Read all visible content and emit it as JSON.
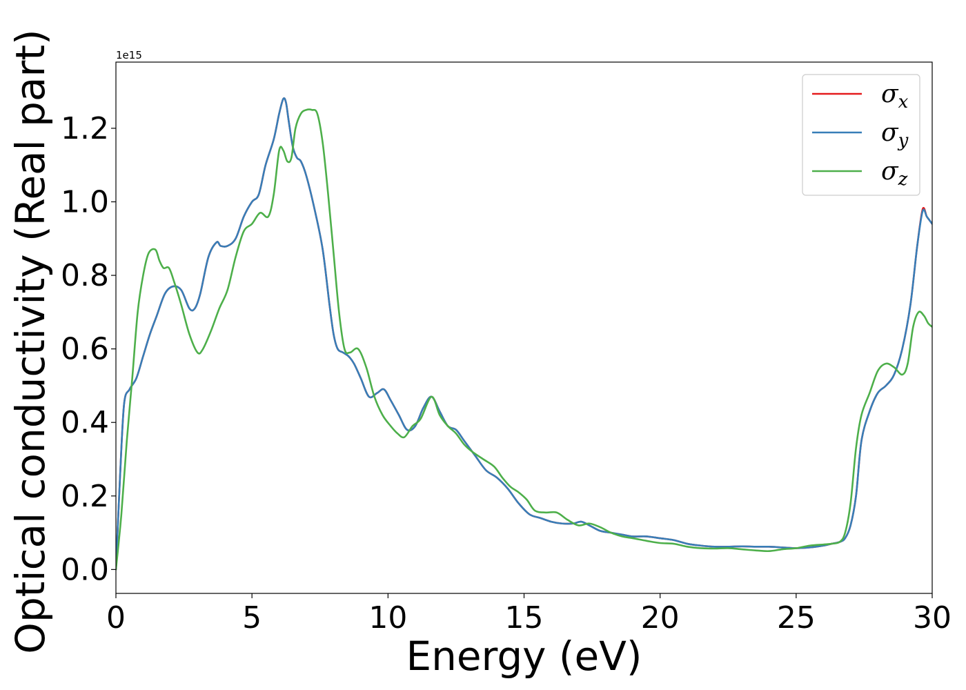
{
  "chart_data": {
    "type": "line",
    "title": "",
    "xlabel": "Energy (eV)",
    "ylabel": "Optical conductivity (Real part)",
    "y_offset_label": "1e15",
    "xlim": [
      0,
      30
    ],
    "ylim": [
      -0.065,
      1.38
    ],
    "x_ticks": [
      0,
      5,
      10,
      15,
      20,
      25,
      30
    ],
    "x_tick_labels": [
      "0",
      "5",
      "10",
      "15",
      "20",
      "25",
      "30"
    ],
    "y_ticks": [
      0.0,
      0.2,
      0.4,
      0.6,
      0.8,
      1.0,
      1.2
    ],
    "y_tick_labels": [
      "0.0",
      "0.2",
      "0.4",
      "0.6",
      "0.8",
      "1.0",
      "1.2"
    ],
    "grid": false,
    "legend_position": "top-right",
    "series": [
      {
        "name": "σx",
        "legend_symbol": "σ",
        "legend_subscript": "x",
        "color": "#e41a1c",
        "x": [
          0,
          0.15,
          0.3,
          0.5,
          0.75,
          1.0,
          1.25,
          1.5,
          1.8,
          2.1,
          2.4,
          2.7,
          2.9,
          3.1,
          3.4,
          3.7,
          3.85,
          4.1,
          4.4,
          4.7,
          5.0,
          5.25,
          5.5,
          5.8,
          6.0,
          6.15,
          6.25,
          6.35,
          6.5,
          6.65,
          6.8,
          7.0,
          7.3,
          7.6,
          7.85,
          8.0,
          8.15,
          8.35,
          8.55,
          8.75,
          9.0,
          9.3,
          9.6,
          9.85,
          10.1,
          10.4,
          10.7,
          11.0,
          11.3,
          11.6,
          11.9,
          12.2,
          12.5,
          12.8,
          13.2,
          13.6,
          14.0,
          14.4,
          14.8,
          15.2,
          15.6,
          16.0,
          16.4,
          16.8,
          17.1,
          17.4,
          17.8,
          18.2,
          18.6,
          19.0,
          19.5,
          20.0,
          20.5,
          21.0,
          21.5,
          22.0,
          22.5,
          23.0,
          23.5,
          24.0,
          24.5,
          25.0,
          25.5,
          26.0,
          26.3,
          26.6,
          26.8,
          27.0,
          27.2,
          27.4,
          27.7,
          28.0,
          28.3,
          28.6,
          28.9,
          29.2,
          29.45,
          29.65,
          29.8,
          29.9,
          30.0
        ],
        "values": [
          0.0,
          0.25,
          0.45,
          0.49,
          0.52,
          0.58,
          0.64,
          0.69,
          0.75,
          0.77,
          0.76,
          0.71,
          0.71,
          0.75,
          0.85,
          0.89,
          0.88,
          0.88,
          0.9,
          0.96,
          1.0,
          1.02,
          1.1,
          1.17,
          1.24,
          1.28,
          1.27,
          1.22,
          1.15,
          1.12,
          1.11,
          1.07,
          0.98,
          0.87,
          0.72,
          0.64,
          0.6,
          0.59,
          0.58,
          0.56,
          0.52,
          0.47,
          0.48,
          0.49,
          0.46,
          0.42,
          0.38,
          0.39,
          0.44,
          0.47,
          0.43,
          0.39,
          0.38,
          0.35,
          0.31,
          0.27,
          0.25,
          0.22,
          0.18,
          0.15,
          0.14,
          0.13,
          0.125,
          0.125,
          0.13,
          0.12,
          0.105,
          0.1,
          0.095,
          0.09,
          0.09,
          0.085,
          0.08,
          0.07,
          0.065,
          0.062,
          0.062,
          0.063,
          0.062,
          0.062,
          0.06,
          0.058,
          0.06,
          0.065,
          0.07,
          0.075,
          0.085,
          0.12,
          0.2,
          0.35,
          0.43,
          0.48,
          0.5,
          0.53,
          0.6,
          0.72,
          0.88,
          0.98,
          0.96,
          0.95,
          0.94
        ]
      },
      {
        "name": "σy",
        "legend_symbol": "σ",
        "legend_subscript": "y",
        "color": "#377eb8",
        "x": [
          0,
          0.15,
          0.3,
          0.5,
          0.75,
          1.0,
          1.25,
          1.5,
          1.8,
          2.1,
          2.4,
          2.7,
          2.9,
          3.1,
          3.4,
          3.7,
          3.85,
          4.1,
          4.4,
          4.7,
          5.0,
          5.25,
          5.5,
          5.8,
          6.0,
          6.15,
          6.25,
          6.35,
          6.5,
          6.65,
          6.8,
          7.0,
          7.3,
          7.6,
          7.85,
          8.0,
          8.15,
          8.35,
          8.55,
          8.75,
          9.0,
          9.3,
          9.6,
          9.85,
          10.1,
          10.4,
          10.7,
          11.0,
          11.3,
          11.6,
          11.9,
          12.2,
          12.5,
          12.8,
          13.2,
          13.6,
          14.0,
          14.4,
          14.8,
          15.2,
          15.6,
          16.0,
          16.4,
          16.8,
          17.1,
          17.4,
          17.8,
          18.2,
          18.6,
          19.0,
          19.5,
          20.0,
          20.5,
          21.0,
          21.5,
          22.0,
          22.5,
          23.0,
          23.5,
          24.0,
          24.5,
          25.0,
          25.5,
          26.0,
          26.3,
          26.6,
          26.8,
          27.0,
          27.2,
          27.4,
          27.7,
          28.0,
          28.3,
          28.6,
          28.9,
          29.2,
          29.45,
          29.65,
          29.8,
          29.9,
          30.0
        ],
        "values": [
          0.0,
          0.25,
          0.45,
          0.49,
          0.52,
          0.58,
          0.64,
          0.69,
          0.75,
          0.77,
          0.76,
          0.71,
          0.71,
          0.75,
          0.85,
          0.89,
          0.88,
          0.88,
          0.9,
          0.96,
          1.0,
          1.02,
          1.1,
          1.17,
          1.24,
          1.28,
          1.27,
          1.22,
          1.15,
          1.12,
          1.11,
          1.07,
          0.98,
          0.87,
          0.72,
          0.64,
          0.6,
          0.59,
          0.58,
          0.56,
          0.52,
          0.47,
          0.48,
          0.49,
          0.46,
          0.42,
          0.38,
          0.39,
          0.44,
          0.47,
          0.43,
          0.39,
          0.38,
          0.35,
          0.31,
          0.27,
          0.25,
          0.22,
          0.18,
          0.15,
          0.14,
          0.13,
          0.125,
          0.125,
          0.13,
          0.12,
          0.105,
          0.1,
          0.095,
          0.09,
          0.09,
          0.085,
          0.08,
          0.07,
          0.065,
          0.062,
          0.062,
          0.063,
          0.062,
          0.062,
          0.06,
          0.058,
          0.06,
          0.065,
          0.07,
          0.075,
          0.085,
          0.12,
          0.2,
          0.35,
          0.43,
          0.48,
          0.5,
          0.53,
          0.6,
          0.72,
          0.88,
          0.975,
          0.96,
          0.95,
          0.94
        ]
      },
      {
        "name": "σz",
        "legend_symbol": "σ",
        "legend_subscript": "z",
        "color": "#4daf4a",
        "x": [
          0,
          0.2,
          0.4,
          0.6,
          0.8,
          1.0,
          1.2,
          1.45,
          1.6,
          1.75,
          1.95,
          2.15,
          2.4,
          2.7,
          3.0,
          3.2,
          3.5,
          3.8,
          4.1,
          4.4,
          4.7,
          5.0,
          5.3,
          5.6,
          5.8,
          6.0,
          6.15,
          6.3,
          6.45,
          6.6,
          6.8,
          7.0,
          7.2,
          7.4,
          7.6,
          7.8,
          8.0,
          8.2,
          8.4,
          8.6,
          8.9,
          9.2,
          9.5,
          9.8,
          10.1,
          10.35,
          10.6,
          10.9,
          11.2,
          11.6,
          11.9,
          12.2,
          12.5,
          12.8,
          13.1,
          13.5,
          13.9,
          14.2,
          14.5,
          14.8,
          15.1,
          15.4,
          15.8,
          16.2,
          16.6,
          17.0,
          17.4,
          17.8,
          18.2,
          18.6,
          19.0,
          19.5,
          20.0,
          20.5,
          21.0,
          21.5,
          22.0,
          22.5,
          23.0,
          23.5,
          24.0,
          24.5,
          25.0,
          25.5,
          26.0,
          26.3,
          26.6,
          26.8,
          27.0,
          27.2,
          27.4,
          27.7,
          28.0,
          28.3,
          28.6,
          28.9,
          29.1,
          29.3,
          29.5,
          29.7,
          29.85,
          30.0
        ],
        "values": [
          0.0,
          0.15,
          0.35,
          0.52,
          0.7,
          0.8,
          0.86,
          0.87,
          0.84,
          0.82,
          0.82,
          0.78,
          0.72,
          0.64,
          0.59,
          0.6,
          0.65,
          0.71,
          0.76,
          0.85,
          0.92,
          0.94,
          0.97,
          0.96,
          1.02,
          1.14,
          1.14,
          1.11,
          1.12,
          1.2,
          1.24,
          1.25,
          1.25,
          1.24,
          1.16,
          1.02,
          0.86,
          0.7,
          0.6,
          0.59,
          0.6,
          0.55,
          0.47,
          0.42,
          0.39,
          0.37,
          0.36,
          0.39,
          0.41,
          0.47,
          0.42,
          0.39,
          0.37,
          0.34,
          0.32,
          0.3,
          0.28,
          0.25,
          0.225,
          0.21,
          0.19,
          0.16,
          0.155,
          0.155,
          0.135,
          0.12,
          0.125,
          0.115,
          0.1,
          0.09,
          0.085,
          0.078,
          0.072,
          0.07,
          0.062,
          0.058,
          0.057,
          0.058,
          0.055,
          0.052,
          0.05,
          0.055,
          0.058,
          0.065,
          0.068,
          0.07,
          0.075,
          0.1,
          0.18,
          0.33,
          0.42,
          0.48,
          0.54,
          0.56,
          0.55,
          0.53,
          0.56,
          0.66,
          0.7,
          0.69,
          0.67,
          0.66
        ]
      }
    ]
  }
}
